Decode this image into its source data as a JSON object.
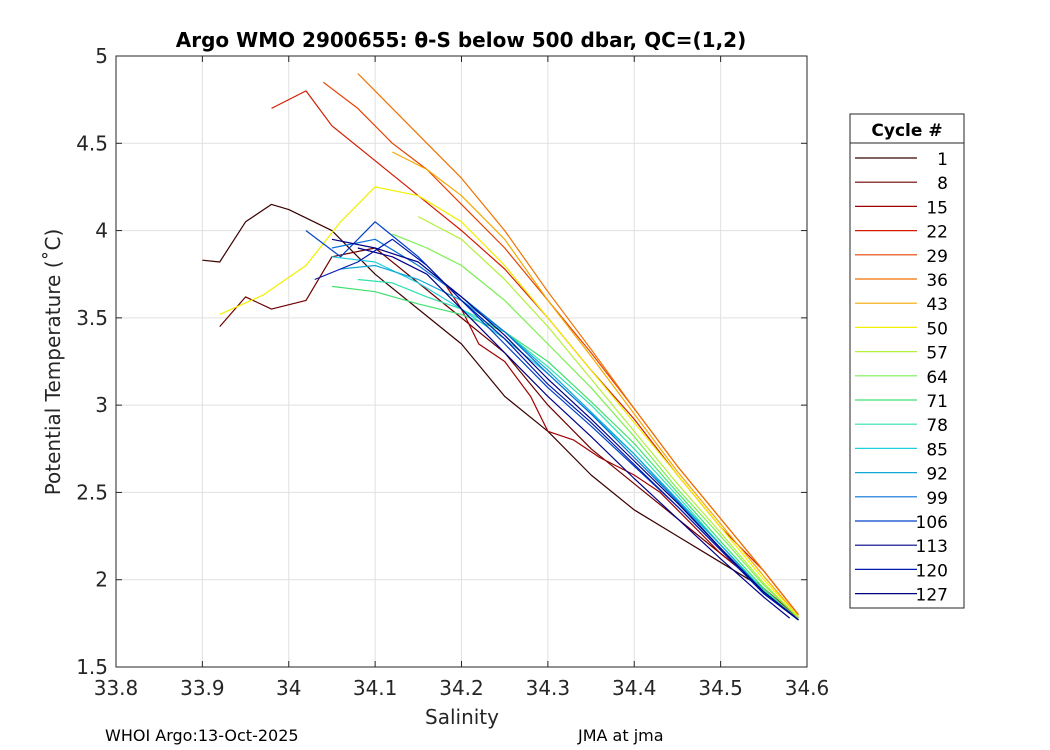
{
  "chart_data": {
    "type": "line",
    "title": "Argo WMO 2900655: θ-S below 500 dbar,  QC=(1,2)",
    "xlabel": "Salinity",
    "ylabel": "Potential Temperature (˚C)",
    "xlim": [
      33.8,
      34.6
    ],
    "ylim": [
      1.5,
      5
    ],
    "xticks": [
      33.8,
      33.9,
      34.0,
      34.1,
      34.2,
      34.3,
      34.4,
      34.5,
      34.6
    ],
    "xtick_labels": [
      "33.8",
      "33.9",
      "34",
      "34.1",
      "34.2",
      "34.3",
      "34.4",
      "34.5",
      "34.6"
    ],
    "yticks": [
      1.5,
      2,
      2.5,
      3,
      3.5,
      4,
      4.5,
      5
    ],
    "ytick_labels": [
      "1.5",
      "2",
      "2.5",
      "3",
      "3.5",
      "4",
      "4.5",
      "5"
    ],
    "grid": true,
    "legend": {
      "title": "Cycle #",
      "position": "outside-right",
      "entries": [
        "1",
        "8",
        "15",
        "22",
        "29",
        "36",
        "43",
        "50",
        "57",
        "64",
        "71",
        "78",
        "85",
        "92",
        "99",
        "106",
        "113",
        "120",
        "127"
      ],
      "colors": [
        "#3a0000",
        "#6e0000",
        "#a00000",
        "#d21c00",
        "#e64000",
        "#f07000",
        "#f4a800",
        "#f0f000",
        "#b4f03c",
        "#78f050",
        "#40e070",
        "#30e0b0",
        "#20d0e0",
        "#10a8d8",
        "#0870d8",
        "#0040c8",
        "#000088",
        "#0018b0",
        "#000080"
      ]
    },
    "series": [
      {
        "name": "1",
        "color": "#3a0000",
        "x": [
          33.9,
          33.92,
          33.95,
          33.98,
          34.0,
          34.05,
          34.1,
          34.15,
          34.2,
          34.25,
          34.3,
          34.35,
          34.4,
          34.45,
          34.5,
          34.55,
          34.59
        ],
        "y": [
          3.83,
          3.82,
          4.05,
          4.15,
          4.12,
          4.0,
          3.75,
          3.55,
          3.35,
          3.05,
          2.85,
          2.6,
          2.4,
          2.25,
          2.1,
          1.95,
          1.78
        ]
      },
      {
        "name": "8",
        "color": "#6e0000",
        "x": [
          33.92,
          33.95,
          33.98,
          34.02,
          34.05,
          34.1,
          34.15,
          34.2,
          34.25,
          34.3,
          34.35,
          34.4,
          34.45,
          34.5,
          34.55,
          34.59
        ],
        "y": [
          3.45,
          3.62,
          3.55,
          3.6,
          3.85,
          3.9,
          3.7,
          3.5,
          3.3,
          3.0,
          2.75,
          2.55,
          2.35,
          2.15,
          1.95,
          1.78
        ]
      },
      {
        "name": "15",
        "color": "#a00000",
        "x": [
          34.18,
          34.2,
          34.22,
          34.25,
          34.28,
          34.3,
          34.33,
          34.36,
          34.4,
          34.43,
          34.46,
          34.5,
          34.55,
          34.59
        ],
        "y": [
          3.7,
          3.55,
          3.35,
          3.25,
          3.05,
          2.85,
          2.8,
          2.7,
          2.6,
          2.5,
          2.35,
          2.15,
          1.95,
          1.78
        ]
      },
      {
        "name": "22",
        "color": "#d21c00",
        "x": [
          33.98,
          34.02,
          34.05,
          34.1,
          34.15,
          34.2,
          34.25,
          34.3,
          34.35,
          34.4,
          34.45,
          34.5,
          34.55,
          34.59
        ],
        "y": [
          4.7,
          4.8,
          4.6,
          4.4,
          4.2,
          4.0,
          3.78,
          3.5,
          3.2,
          2.92,
          2.6,
          2.3,
          2.05,
          1.8
        ]
      },
      {
        "name": "29",
        "color": "#e64000",
        "x": [
          34.04,
          34.08,
          34.12,
          34.16,
          34.2,
          34.25,
          34.3,
          34.35,
          34.4,
          34.45,
          34.5,
          34.55,
          34.59
        ],
        "y": [
          4.85,
          4.7,
          4.5,
          4.35,
          4.15,
          3.9,
          3.6,
          3.3,
          2.98,
          2.65,
          2.35,
          2.05,
          1.8
        ]
      },
      {
        "name": "36",
        "color": "#f07000",
        "x": [
          34.08,
          34.12,
          34.16,
          34.2,
          34.25,
          34.3,
          34.35,
          34.4,
          34.45,
          34.5,
          34.55,
          34.59
        ],
        "y": [
          4.9,
          4.7,
          4.5,
          4.3,
          4.0,
          3.65,
          3.32,
          2.98,
          2.65,
          2.35,
          2.05,
          1.8
        ]
      },
      {
        "name": "43",
        "color": "#f4a800",
        "x": [
          34.12,
          34.16,
          34.2,
          34.25,
          34.3,
          34.35,
          34.4,
          34.45,
          34.5,
          34.55,
          34.59
        ],
        "y": [
          4.45,
          4.35,
          4.2,
          3.95,
          3.6,
          3.28,
          2.95,
          2.62,
          2.32,
          2.02,
          1.79
        ]
      },
      {
        "name": "50",
        "color": "#f0f000",
        "x": [
          33.92,
          33.97,
          34.02,
          34.06,
          34.1,
          34.15,
          34.2,
          34.25,
          34.3,
          34.35,
          34.4,
          34.45,
          34.5,
          34.55,
          34.59
        ],
        "y": [
          3.52,
          3.63,
          3.8,
          4.05,
          4.25,
          4.2,
          4.05,
          3.8,
          3.5,
          3.2,
          2.9,
          2.6,
          2.3,
          2.0,
          1.79
        ]
      },
      {
        "name": "57",
        "color": "#b4f03c",
        "x": [
          34.15,
          34.2,
          34.25,
          34.3,
          34.35,
          34.4,
          34.45,
          34.5,
          34.55,
          34.59
        ],
        "y": [
          4.08,
          3.95,
          3.72,
          3.45,
          3.15,
          2.85,
          2.55,
          2.27,
          1.98,
          1.78
        ]
      },
      {
        "name": "64",
        "color": "#78f050",
        "x": [
          34.12,
          34.16,
          34.2,
          34.25,
          34.3,
          34.35,
          34.4,
          34.45,
          34.5,
          34.55,
          34.59
        ],
        "y": [
          3.98,
          3.9,
          3.8,
          3.6,
          3.35,
          3.1,
          2.82,
          2.52,
          2.25,
          1.97,
          1.78
        ]
      },
      {
        "name": "71",
        "color": "#40e070",
        "x": [
          34.05,
          34.1,
          34.15,
          34.2,
          34.25,
          34.3,
          34.35,
          34.4,
          34.45,
          34.5,
          34.55,
          34.59
        ],
        "y": [
          3.68,
          3.65,
          3.58,
          3.52,
          3.42,
          3.25,
          3.02,
          2.78,
          2.5,
          2.22,
          1.95,
          1.77
        ]
      },
      {
        "name": "78",
        "color": "#30e0b0",
        "x": [
          34.08,
          34.12,
          34.16,
          34.2,
          34.25,
          34.3,
          34.35,
          34.4,
          34.45,
          34.5,
          34.55,
          34.59
        ],
        "y": [
          3.72,
          3.7,
          3.62,
          3.55,
          3.42,
          3.22,
          3.0,
          2.75,
          2.48,
          2.2,
          1.94,
          1.77
        ]
      },
      {
        "name": "85",
        "color": "#20d0e0",
        "x": [
          34.05,
          34.1,
          34.15,
          34.2,
          34.25,
          34.3,
          34.35,
          34.4,
          34.45,
          34.5,
          34.55,
          34.59
        ],
        "y": [
          3.85,
          3.82,
          3.7,
          3.55,
          3.38,
          3.18,
          2.95,
          2.72,
          2.45,
          2.2,
          1.93,
          1.77
        ]
      },
      {
        "name": "92",
        "color": "#10a8d8",
        "x": [
          34.06,
          34.1,
          34.15,
          34.2,
          34.25,
          34.3,
          34.35,
          34.4,
          34.45,
          34.5,
          34.55,
          34.59
        ],
        "y": [
          3.78,
          3.8,
          3.72,
          3.6,
          3.42,
          3.2,
          2.96,
          2.72,
          2.46,
          2.2,
          1.93,
          1.77
        ]
      },
      {
        "name": "99",
        "color": "#0870d8",
        "x": [
          34.05,
          34.1,
          34.15,
          34.2,
          34.25,
          34.3,
          34.35,
          34.4,
          34.45,
          34.5,
          34.55,
          34.59
        ],
        "y": [
          3.9,
          3.95,
          3.8,
          3.62,
          3.42,
          3.18,
          2.95,
          2.7,
          2.45,
          2.18,
          1.92,
          1.77
        ]
      },
      {
        "name": "106",
        "color": "#0040c8",
        "x": [
          34.02,
          34.06,
          34.1,
          34.15,
          34.2,
          34.25,
          34.3,
          34.35,
          34.4,
          34.45,
          34.5,
          34.55,
          34.59
        ],
        "y": [
          4.0,
          3.85,
          4.05,
          3.85,
          3.6,
          3.35,
          3.1,
          2.88,
          2.65,
          2.42,
          2.17,
          1.92,
          1.77
        ]
      },
      {
        "name": "113",
        "color": "#000088",
        "x": [
          34.08,
          34.12,
          34.16,
          34.2,
          34.25,
          34.3,
          34.35,
          34.4,
          34.45,
          34.5,
          34.55,
          34.58
        ],
        "y": [
          3.9,
          3.85,
          3.75,
          3.55,
          3.3,
          3.05,
          2.82,
          2.58,
          2.35,
          2.12,
          1.9,
          1.78
        ]
      },
      {
        "name": "120",
        "color": "#0018b0",
        "x": [
          34.03,
          34.08,
          34.12,
          34.16,
          34.2,
          34.25,
          34.3,
          34.35,
          34.4,
          34.45,
          34.5,
          34.55,
          34.59
        ],
        "y": [
          3.72,
          3.82,
          3.95,
          3.8,
          3.6,
          3.38,
          3.12,
          2.9,
          2.66,
          2.42,
          2.17,
          1.92,
          1.77
        ]
      },
      {
        "name": "127",
        "color": "#000080",
        "x": [
          34.05,
          34.1,
          34.15,
          34.2,
          34.25,
          34.3,
          34.35,
          34.4,
          34.45,
          34.5,
          34.55,
          34.59
        ],
        "y": [
          3.95,
          3.9,
          3.82,
          3.62,
          3.4,
          3.15,
          2.92,
          2.68,
          2.44,
          2.18,
          1.93,
          1.77
        ]
      }
    ]
  },
  "footer": {
    "left": "WHOI Argo:13-Oct-2025",
    "right": "JMA at jma"
  }
}
